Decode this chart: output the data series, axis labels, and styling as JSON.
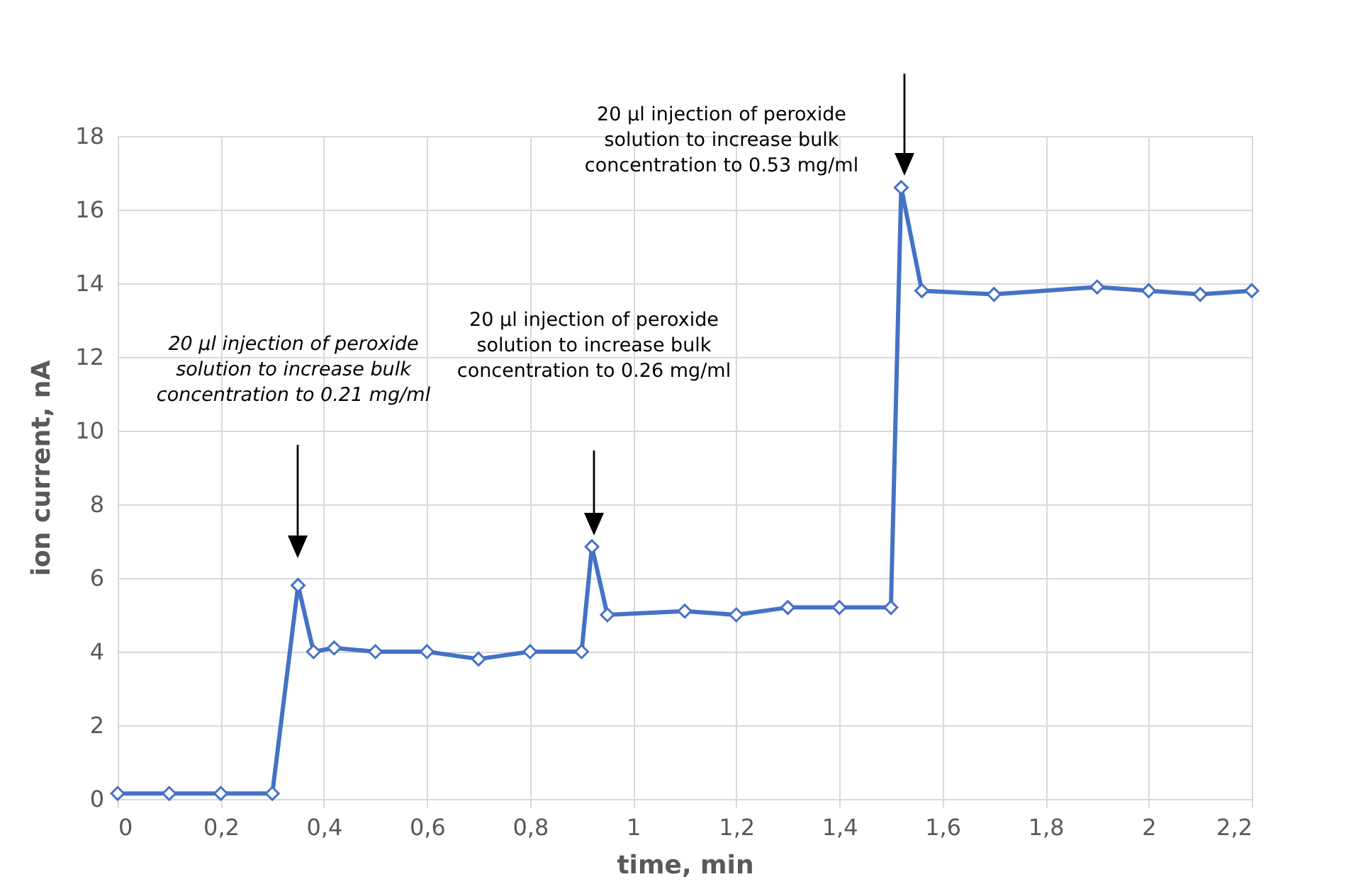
{
  "chart_data": {
    "type": "line",
    "xlabel": "time, min",
    "ylabel": "ion current, nA",
    "x": [
      0,
      0.1,
      0.2,
      0.3,
      0.35,
      0.38,
      0.42,
      0.5,
      0.6,
      0.7,
      0.8,
      0.9,
      0.92,
      0.95,
      1.1,
      1.2,
      1.3,
      1.4,
      1.5,
      1.52,
      1.56,
      1.7,
      1.9,
      2.0,
      2.1,
      2.2
    ],
    "series": [
      {
        "color": "#4472c4",
        "values": [
          0.15,
          0.15,
          0.15,
          0.15,
          5.8,
          4.0,
          4.1,
          4.0,
          4.0,
          3.8,
          4.0,
          4.0,
          6.85,
          5.0,
          5.1,
          5.0,
          5.2,
          5.2,
          5.2,
          16.6,
          13.8,
          13.7,
          13.9,
          13.8,
          13.7,
          13.8
        ]
      }
    ],
    "xlim": [
      0,
      2.2
    ],
    "xticks": [
      {
        "value": 0,
        "label": "0"
      },
      {
        "value": 0.2,
        "label": "0,2"
      },
      {
        "value": 0.4,
        "label": "0,4"
      },
      {
        "value": 0.6,
        "label": "0,6"
      },
      {
        "value": 0.8,
        "label": "0,8"
      },
      {
        "value": 1,
        "label": "1"
      },
      {
        "value": 1.2,
        "label": "1,2"
      },
      {
        "value": 1.4,
        "label": "1,4"
      },
      {
        "value": 1.6,
        "label": "1,6"
      },
      {
        "value": 1.8,
        "label": "1,8"
      },
      {
        "value": 2,
        "label": "2"
      },
      {
        "value": 2.2,
        "label": "2,2"
      }
    ],
    "ylim": [
      0,
      18
    ],
    "yticks": [
      0,
      2,
      4,
      6,
      8,
      10,
      12,
      14,
      16,
      18
    ],
    "grid": true,
    "marker": "diamond",
    "line_style": "solid",
    "annotations": [
      "20 µl injection of peroxide\nsolution to increase bulk\nconcentration to 0.21 mg/ml",
      "20 µl injection of peroxide\nsolution to increase bulk\nconcentration to 0.26 mg/ml",
      "20 µl injection of peroxide\nsolution to increase bulk\nconcentration to 0.53 mg/ml"
    ]
  }
}
